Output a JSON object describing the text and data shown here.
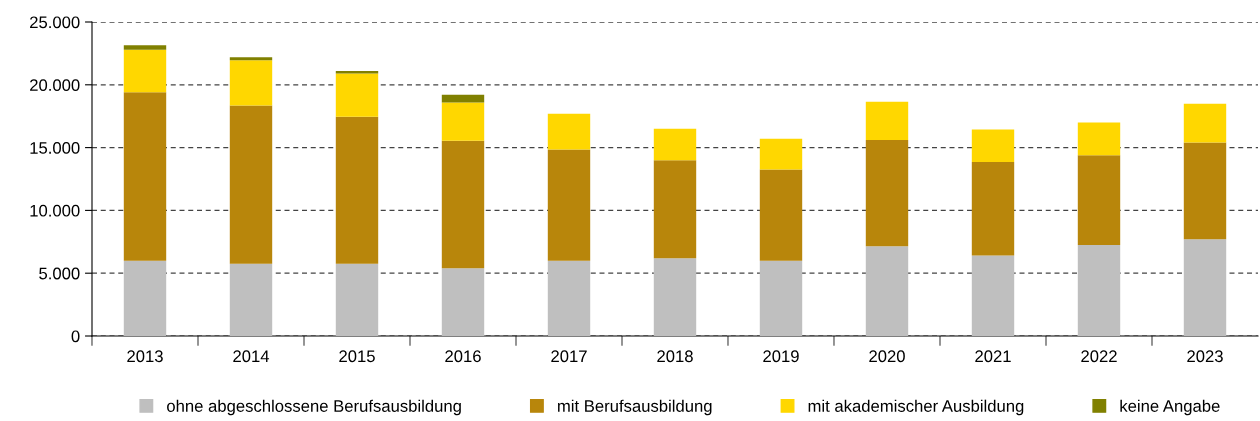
{
  "chart_data": {
    "type": "bar",
    "stacked": true,
    "categories": [
      "2013",
      "2014",
      "2015",
      "2016",
      "2017",
      "2018",
      "2019",
      "2020",
      "2021",
      "2022",
      "2023"
    ],
    "series": [
      {
        "name": "ohne abgeschlossene Berufsausbildung",
        "color": "#bfbfbf",
        "values": [
          6000,
          5750,
          5750,
          5400,
          6000,
          6200,
          6000,
          7150,
          6400,
          7250,
          7700
        ]
      },
      {
        "name": "mit Berufsausbildung",
        "color": "#b8860b",
        "values": [
          13400,
          12600,
          11700,
          10150,
          8850,
          7800,
          7250,
          8450,
          7450,
          7150,
          7700
        ]
      },
      {
        "name": "mit akademischer Ausbildung",
        "color": "#ffd700",
        "values": [
          3400,
          3600,
          3450,
          3050,
          2850,
          2500,
          2450,
          3050,
          2600,
          2600,
          3100
        ]
      },
      {
        "name": "keine Angabe",
        "color": "#808000",
        "values": [
          350,
          250,
          200,
          600,
          null,
          null,
          null,
          null,
          null,
          null,
          null
        ]
      }
    ],
    "ylim": [
      0,
      25000
    ],
    "yticks": [
      0,
      {
        "value": 5000,
        "label": "5.000"
      },
      {
        "value": 10000,
        "label": "10.000"
      },
      {
        "value": 15000,
        "label": "15.000"
      },
      {
        "value": 20000,
        "label": "20.000"
      },
      {
        "value": 25000,
        "label": "25.000"
      }
    ],
    "grid": "y",
    "line_style": "dashed",
    "legend": "bottom",
    "marker": "square"
  }
}
